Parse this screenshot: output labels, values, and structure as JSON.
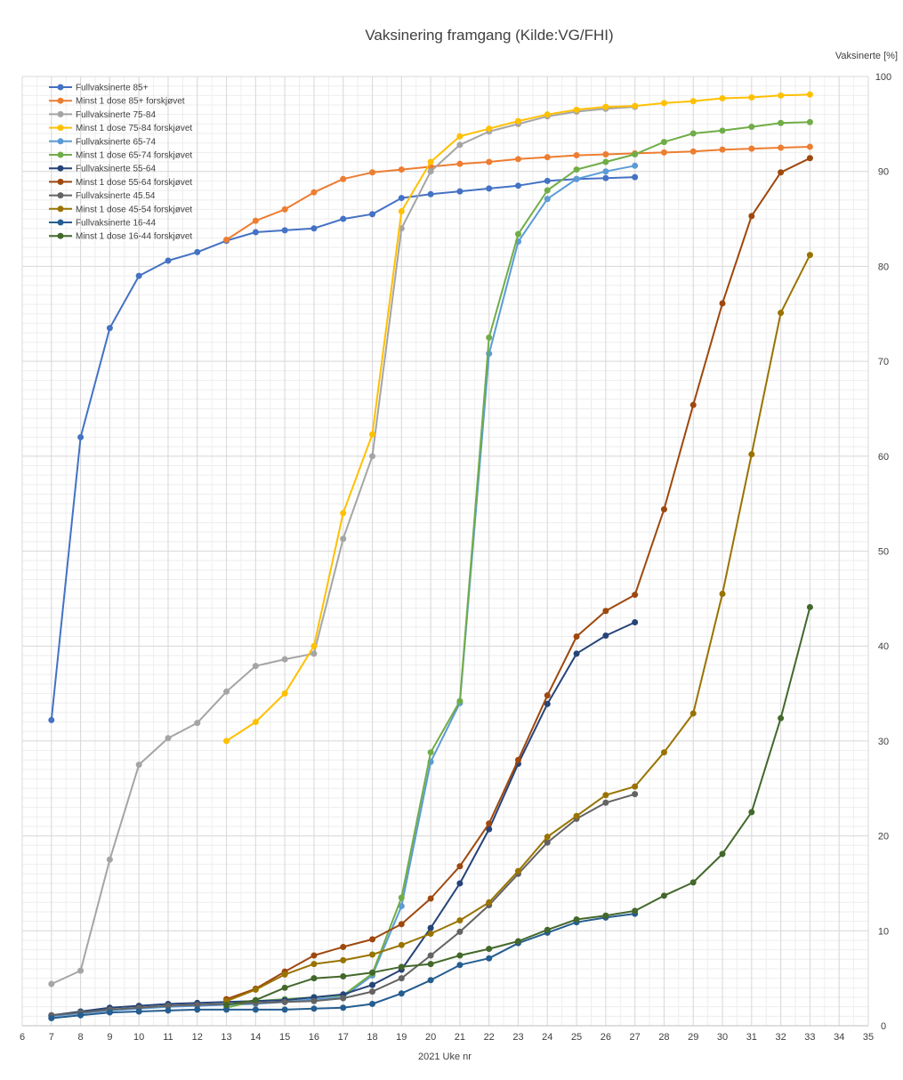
{
  "chart_data": {
    "type": "line",
    "title": "Vaksinering framgang (Kilde:VG/FHI)",
    "xlabel": "2021 Uke nr",
    "ylabel": "Vaksinerte [%]",
    "xlim": [
      6,
      35
    ],
    "ylim": [
      0,
      100
    ],
    "x_ticks": [
      6,
      7,
      8,
      9,
      10,
      11,
      12,
      13,
      14,
      15,
      16,
      17,
      18,
      19,
      20,
      21,
      22,
      23,
      24,
      25,
      26,
      27,
      28,
      29,
      30,
      31,
      32,
      33,
      34,
      35
    ],
    "y_ticks": [
      0,
      10,
      20,
      30,
      40,
      50,
      60,
      70,
      80,
      90,
      100
    ],
    "y_axis_position": "right",
    "grid": "major and minor",
    "legend_position": "top-left",
    "series": [
      {
        "name": "Fullvaksinerte 85+",
        "color": "#4472C4",
        "x": [
          7,
          8,
          9,
          10,
          11,
          12,
          13,
          14,
          15,
          16,
          17,
          18,
          19,
          20,
          21,
          22,
          23,
          24,
          25,
          26,
          27
        ],
        "values": [
          32.2,
          62,
          73.5,
          79,
          80.6,
          81.5,
          82.7,
          83.6,
          83.8,
          84,
          85,
          85.5,
          87.2,
          87.6,
          87.9,
          88.2,
          88.5,
          89,
          89.2,
          89.3,
          89.4
        ]
      },
      {
        "name": "Minst 1 dose 85+ forskjøvet",
        "color": "#ED7D31",
        "x": [
          13,
          14,
          15,
          16,
          17,
          18,
          19,
          20,
          21,
          22,
          23,
          24,
          25,
          26,
          27,
          28,
          29,
          30,
          31,
          32,
          33
        ],
        "values": [
          82.8,
          84.8,
          86,
          87.8,
          89.2,
          89.9,
          90.2,
          90.5,
          90.8,
          91,
          91.3,
          91.5,
          91.7,
          91.8,
          91.9,
          92,
          92.1,
          92.3,
          92.4,
          92.5,
          92.6
        ]
      },
      {
        "name": "Fullvaksinerte 75-84",
        "color": "#A5A5A5",
        "x": [
          7,
          8,
          9,
          10,
          11,
          12,
          13,
          14,
          15,
          16,
          17,
          18,
          19,
          20,
          21,
          22,
          23,
          24,
          25,
          26,
          27
        ],
        "values": [
          4.4,
          5.8,
          17.5,
          27.5,
          30.3,
          31.9,
          35.2,
          37.9,
          38.6,
          39.2,
          51.3,
          60,
          84,
          90,
          92.8,
          94.2,
          95,
          95.8,
          96.3,
          96.6,
          96.8
        ]
      },
      {
        "name": "Minst 1 dose 75-84 forskjøvet",
        "color": "#FFC000",
        "x": [
          13,
          14,
          15,
          16,
          17,
          18,
          19,
          20,
          21,
          22,
          23,
          24,
          25,
          26,
          27,
          28,
          29,
          30,
          31,
          32,
          33
        ],
        "values": [
          30,
          32,
          35,
          40,
          54,
          62.3,
          85.8,
          91,
          93.7,
          94.5,
          95.3,
          96,
          96.5,
          96.8,
          96.9,
          97.2,
          97.4,
          97.7,
          97.8,
          98,
          98.1
        ]
      },
      {
        "name": "Fullvaksinerte 65-74",
        "color": "#5B9BD5",
        "x": [
          7,
          8,
          9,
          10,
          11,
          12,
          13,
          14,
          15,
          16,
          17,
          18,
          19,
          20,
          21,
          22,
          23,
          24,
          25,
          26,
          27
        ],
        "values": [
          1,
          1.3,
          1.6,
          1.8,
          2,
          2.1,
          2.2,
          2.3,
          2.5,
          2.8,
          3,
          5.3,
          12.6,
          27.8,
          34,
          70.8,
          82.6,
          87.1,
          89.2,
          90,
          90.6
        ]
      },
      {
        "name": "Minst 1 dose 65-74 forskjøvet",
        "color": "#70AD47",
        "x": [
          13,
          14,
          15,
          16,
          17,
          18,
          19,
          20,
          21,
          22,
          23,
          24,
          25,
          26,
          27,
          28,
          29,
          30,
          31,
          32,
          33
        ],
        "values": [
          1.9,
          2.6,
          2.8,
          3,
          3.2,
          5.5,
          13.5,
          28.8,
          34.2,
          72.5,
          83.4,
          88,
          90.2,
          91,
          91.8,
          93.1,
          94,
          94.3,
          94.7,
          95.1,
          95.2
        ]
      },
      {
        "name": "Fullvaksinerte 55-64",
        "color": "#264478",
        "x": [
          7,
          8,
          9,
          10,
          11,
          12,
          13,
          14,
          15,
          16,
          17,
          18,
          19,
          20,
          21,
          22,
          23,
          24,
          25,
          26,
          27
        ],
        "values": [
          1.1,
          1.5,
          1.9,
          2.1,
          2.3,
          2.4,
          2.5,
          2.6,
          2.7,
          3,
          3.3,
          4.3,
          5.9,
          10.3,
          15,
          20.7,
          27.6,
          33.9,
          39.2,
          41.1,
          42.5
        ]
      },
      {
        "name": "Minst 1 dose 55-64 forskjøvet",
        "color": "#9E480E",
        "x": [
          13,
          14,
          15,
          16,
          17,
          18,
          19,
          20,
          21,
          22,
          23,
          24,
          25,
          26,
          27,
          28,
          29,
          30,
          31,
          32,
          33
        ],
        "values": [
          2.8,
          3.9,
          5.7,
          7.4,
          8.3,
          9.1,
          10.7,
          13.4,
          16.8,
          21.3,
          28,
          34.8,
          41,
          43.7,
          45.4,
          54.4,
          65.4,
          76.1,
          85.3,
          89.9,
          91.4
        ]
      },
      {
        "name": "Fullvaksinerte 45.54",
        "color": "#636363",
        "x": [
          7,
          8,
          9,
          10,
          11,
          12,
          13,
          14,
          15,
          16,
          17,
          18,
          19,
          20,
          21,
          22,
          23,
          24,
          25,
          26,
          27
        ],
        "values": [
          1.1,
          1.4,
          1.7,
          1.9,
          2.1,
          2.2,
          2.3,
          2.4,
          2.5,
          2.6,
          2.9,
          3.6,
          5,
          7.4,
          9.9,
          12.7,
          16,
          19.3,
          21.8,
          23.5,
          24.4
        ]
      },
      {
        "name": "Minst 1 dose 45-54 forskjøvet",
        "color": "#997300",
        "x": [
          13,
          14,
          15,
          16,
          17,
          18,
          19,
          20,
          21,
          22,
          23,
          24,
          25,
          26,
          27,
          28,
          29,
          30,
          31,
          32,
          33
        ],
        "values": [
          2.6,
          3.8,
          5.4,
          6.5,
          6.9,
          7.5,
          8.5,
          9.7,
          11.1,
          13,
          16.3,
          19.9,
          22.1,
          24.3,
          25.2,
          28.8,
          32.9,
          45.5,
          60.2,
          75.1,
          81.2
        ]
      },
      {
        "name": "Fullvaksinerte 16-44",
        "color": "#255E91",
        "x": [
          7,
          8,
          9,
          10,
          11,
          12,
          13,
          14,
          15,
          16,
          17,
          18,
          19,
          20,
          21,
          22,
          23,
          24,
          25,
          26,
          27
        ],
        "values": [
          0.8,
          1.1,
          1.4,
          1.5,
          1.6,
          1.7,
          1.7,
          1.7,
          1.7,
          1.8,
          1.9,
          2.3,
          3.4,
          4.8,
          6.4,
          7.1,
          8.7,
          9.8,
          10.9,
          11.4,
          11.8
        ]
      },
      {
        "name": "Minst 1 dose 16-44 forskjøvet",
        "color": "#43682B",
        "x": [
          13,
          14,
          15,
          16,
          17,
          18,
          19,
          20,
          21,
          22,
          23,
          24,
          25,
          26,
          27,
          28,
          29,
          30,
          31,
          32,
          33
        ],
        "values": [
          2.2,
          2.7,
          4,
          5,
          5.2,
          5.6,
          6.2,
          6.5,
          7.4,
          8.1,
          8.9,
          10.1,
          11.2,
          11.6,
          12.1,
          13.7,
          15.1,
          18.1,
          22.5,
          32.4,
          44.1
        ]
      }
    ]
  }
}
